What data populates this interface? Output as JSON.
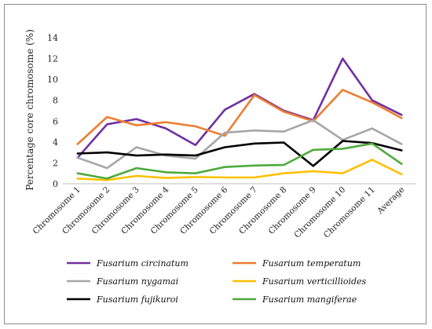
{
  "chart_data": {
    "type": "line",
    "ylabel": "Percentage core chromosome (%)",
    "xlabel": "",
    "title": "",
    "ylim": [
      0,
      14
    ],
    "yticks": [
      0,
      2,
      4,
      6,
      8,
      10,
      12,
      14
    ],
    "grid": false,
    "legend_position": "bottom",
    "categories": [
      "Chromosome 1",
      "Chromosome 2",
      "Chromosome 3",
      "Chromosome 4",
      "Chromosome 5",
      "Chromosome 6",
      "Chromosome 7",
      "Chromosome 8",
      "Chromosome 9",
      "Chromosome 10",
      "Chromosome 11",
      "Average"
    ],
    "series": [
      {
        "name": "Fusarium circinatum",
        "color": "#7030A0",
        "values": [
          2.5,
          5.7,
          6.2,
          5.3,
          3.7,
          7.1,
          8.6,
          7.0,
          6.1,
          12.0,
          8.0,
          6.6
        ]
      },
      {
        "name": "Fusarium temperatum",
        "color": "#ED7D31",
        "values": [
          3.8,
          6.4,
          5.6,
          5.9,
          5.5,
          4.6,
          8.5,
          6.9,
          6.0,
          9.0,
          7.8,
          6.3
        ]
      },
      {
        "name": "Fusarium nygamai",
        "color": "#A6A6A6",
        "values": [
          2.5,
          1.5,
          3.5,
          2.7,
          2.4,
          4.9,
          5.1,
          5.0,
          6.1,
          4.2,
          5.3,
          3.8
        ]
      },
      {
        "name": "Fusarium verticillioides",
        "color": "#FFC000",
        "values": [
          0.5,
          0.35,
          0.75,
          0.55,
          0.65,
          0.6,
          0.6,
          1.0,
          1.2,
          1.0,
          2.3,
          0.9
        ]
      },
      {
        "name": "Fusarium fujikuroi",
        "color": "#000000",
        "values": [
          2.9,
          3.0,
          2.7,
          2.8,
          2.7,
          3.5,
          3.85,
          3.95,
          1.7,
          4.1,
          3.9,
          3.2
        ]
      },
      {
        "name": "Fusarium  mangiferae",
        "color": "#4EAA3C",
        "values": [
          1.0,
          0.5,
          1.5,
          1.1,
          1.0,
          1.6,
          1.75,
          1.8,
          3.25,
          3.35,
          3.85,
          1.9
        ]
      }
    ]
  }
}
